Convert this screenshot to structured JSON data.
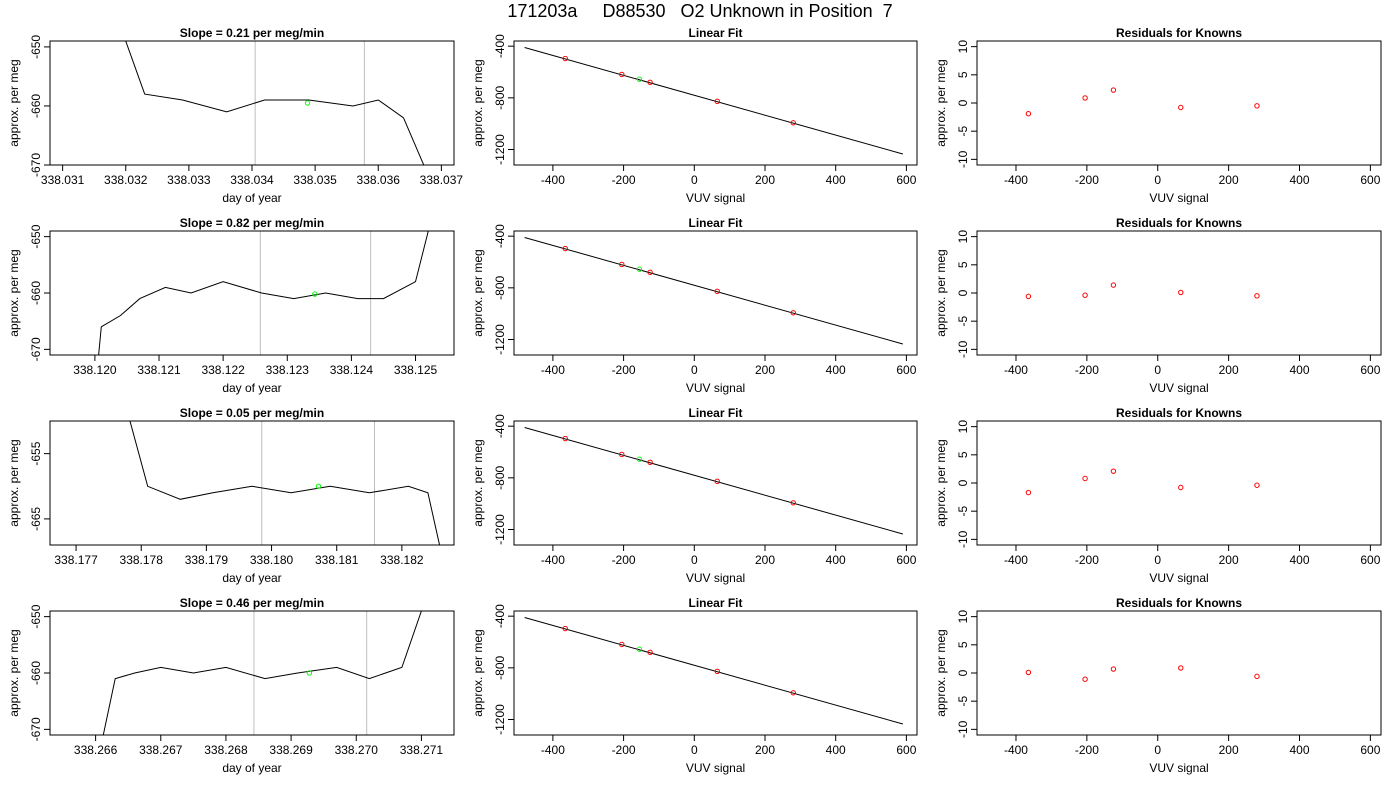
{
  "page_title": "171203a     D88530   O2 Unknown in Position  7",
  "colors": {
    "line": "#000000",
    "gridline": "#bebebe",
    "unknown_point": "#00ff00",
    "known_point": "#ff0000"
  },
  "chart_data": [
    {
      "type": "line",
      "title": "Slope =  0.21  per meg/min",
      "xlabel": "day of year",
      "ylabel": "approx. per meg",
      "xlim": [
        338.0308,
        338.0372
      ],
      "ylim": [
        -670,
        -649
      ],
      "xticks": [
        338.031,
        338.032,
        338.033,
        338.034,
        338.035,
        338.036,
        338.037
      ],
      "xtick_labels": [
        "338.031",
        "338.032",
        "338.033",
        "338.034",
        "338.035",
        "338.036",
        "338.037"
      ],
      "yticks": [
        -670,
        -660,
        -650
      ],
      "ytick_labels": [
        "-670",
        "-660",
        "-650"
      ],
      "x": [
        338.032,
        338.0323,
        338.0329,
        338.0336,
        338.0342,
        338.0349,
        338.0356,
        338.036,
        338.0364,
        338.0368
      ],
      "y": [
        -649,
        -658,
        -659,
        -661,
        -659,
        -659,
        -660,
        -659,
        -662,
        -672
      ],
      "vlines": [
        338.03405,
        338.03578
      ],
      "unknown_point": {
        "x": 338.03488,
        "y": -659.5
      }
    },
    {
      "type": "scatter",
      "title": "Linear Fit",
      "xlabel": "VUV signal",
      "ylabel": "approx. per meg",
      "xlim": [
        -510,
        630
      ],
      "ylim": [
        -1320,
        -360
      ],
      "xticks": [
        -400,
        -200,
        0,
        200,
        400,
        600
      ],
      "xtick_labels": [
        "-400",
        "-200",
        "0",
        "200",
        "400",
        "600"
      ],
      "yticks": [
        -1200,
        -800,
        -400
      ],
      "ytick_labels": [
        "-1200",
        "-800",
        "-400"
      ],
      "fit_line": {
        "x": [
          -480,
          590
        ],
        "y": [
          -410,
          -1235
        ]
      },
      "knowns": {
        "x": [
          -365,
          -205,
          -125,
          65,
          280
        ],
        "y": [
          -496,
          -619,
          -680,
          -827,
          -993
        ]
      },
      "unknown_point": {
        "x": -155,
        "y": -656
      }
    },
    {
      "type": "scatter",
      "title": "Residuals for Knowns",
      "xlabel": "VUV signal",
      "ylabel": "approx. per meg",
      "xlim": [
        -510,
        630
      ],
      "ylim": [
        -11,
        11
      ],
      "xticks": [
        -400,
        -200,
        0,
        200,
        400,
        600
      ],
      "xtick_labels": [
        "-400",
        "-200",
        "0",
        "200",
        "400",
        "600"
      ],
      "yticks": [
        -10,
        -5,
        0,
        5,
        10
      ],
      "ytick_labels": [
        "-10",
        "-5",
        "0",
        "5",
        "10"
      ],
      "knowns": {
        "x": [
          -365,
          -205,
          -125,
          65,
          280
        ],
        "y": [
          -1.9,
          0.9,
          2.3,
          -0.8,
          -0.5
        ]
      }
    },
    {
      "type": "line",
      "title": "Slope =  0.82  per meg/min",
      "xlabel": "day of year",
      "ylabel": "approx. per meg",
      "xlim": [
        338.1193,
        338.1256
      ],
      "ylim": [
        -671,
        -649
      ],
      "xticks": [
        338.12,
        338.121,
        338.122,
        338.123,
        338.124,
        338.125
      ],
      "xtick_labels": [
        "338.120",
        "338.121",
        "338.122",
        "338.123",
        "338.124",
        "338.125"
      ],
      "yticks": [
        -670,
        -660,
        -650
      ],
      "ytick_labels": [
        "-670",
        "-660",
        "-650"
      ],
      "x": [
        338.12005,
        338.1201,
        338.1204,
        338.1207,
        338.1211,
        338.1215,
        338.122,
        338.1226,
        338.1231,
        338.1236,
        338.1241,
        338.1245,
        338.125,
        338.1252
      ],
      "y": [
        -672,
        -666,
        -664,
        -661,
        -659,
        -660,
        -658,
        -660,
        -661,
        -660,
        -661,
        -661,
        -658,
        -649
      ],
      "vlines": [
        338.12258,
        338.1243
      ],
      "unknown_point": {
        "x": 338.12343,
        "y": -660.2
      }
    },
    {
      "type": "scatter",
      "title": "Linear Fit",
      "xlabel": "VUV signal",
      "ylabel": "approx. per meg",
      "xlim": [
        -510,
        630
      ],
      "ylim": [
        -1320,
        -360
      ],
      "xticks": [
        -400,
        -200,
        0,
        200,
        400,
        600
      ],
      "xtick_labels": [
        "-400",
        "-200",
        "0",
        "200",
        "400",
        "600"
      ],
      "yticks": [
        -1200,
        -800,
        -400
      ],
      "ytick_labels": [
        "-1200",
        "-800",
        "-400"
      ],
      "fit_line": {
        "x": [
          -480,
          590
        ],
        "y": [
          -410,
          -1235
        ]
      },
      "knowns": {
        "x": [
          -365,
          -205,
          -125,
          65,
          280
        ],
        "y": [
          -496,
          -619,
          -680,
          -827,
          -993
        ]
      },
      "unknown_point": {
        "x": -155,
        "y": -656
      }
    },
    {
      "type": "scatter",
      "title": "Residuals for Knowns",
      "xlabel": "VUV signal",
      "ylabel": "approx. per meg",
      "xlim": [
        -510,
        630
      ],
      "ylim": [
        -11,
        11
      ],
      "xticks": [
        -400,
        -200,
        0,
        200,
        400,
        600
      ],
      "xtick_labels": [
        "-400",
        "-200",
        "0",
        "200",
        "400",
        "600"
      ],
      "yticks": [
        -10,
        -5,
        0,
        5,
        10
      ],
      "ytick_labels": [
        "-10",
        "-5",
        "0",
        "5",
        "10"
      ],
      "knowns": {
        "x": [
          -365,
          -205,
          -125,
          65,
          280
        ],
        "y": [
          -0.6,
          -0.4,
          1.4,
          0.1,
          -0.5
        ]
      }
    },
    {
      "type": "line",
      "title": "Slope =  0.05  per meg/min",
      "xlabel": "day of year",
      "ylabel": "approx. per meg",
      "xlim": [
        338.1766,
        338.1828
      ],
      "ylim": [
        -669,
        -650
      ],
      "xticks": [
        338.177,
        338.178,
        338.179,
        338.18,
        338.181,
        338.182
      ],
      "xtick_labels": [
        "338.177",
        "338.178",
        "338.179",
        "338.180",
        "338.181",
        "338.182"
      ],
      "yticks": [
        -665,
        -655
      ],
      "ytick_labels": [
        "-665",
        "-655"
      ],
      "x": [
        338.1778,
        338.1781,
        338.1786,
        338.1791,
        338.1797,
        338.1803,
        338.1809,
        338.1815,
        338.1821,
        338.1824,
        338.1826
      ],
      "y": [
        -649,
        -660,
        -662,
        -661,
        -660,
        -661,
        -660,
        -661,
        -660,
        -661,
        -670
      ],
      "vlines": [
        338.17985,
        338.18158
      ],
      "unknown_point": {
        "x": 338.18072,
        "y": -660.0
      }
    },
    {
      "type": "scatter",
      "title": "Linear Fit",
      "xlabel": "VUV signal",
      "ylabel": "approx. per meg",
      "xlim": [
        -510,
        630
      ],
      "ylim": [
        -1320,
        -360
      ],
      "xticks": [
        -400,
        -200,
        0,
        200,
        400,
        600
      ],
      "xtick_labels": [
        "-400",
        "-200",
        "0",
        "200",
        "400",
        "600"
      ],
      "yticks": [
        -1200,
        -800,
        -400
      ],
      "ytick_labels": [
        "-1200",
        "-800",
        "-400"
      ],
      "fit_line": {
        "x": [
          -480,
          590
        ],
        "y": [
          -410,
          -1235
        ]
      },
      "knowns": {
        "x": [
          -365,
          -205,
          -125,
          65,
          280
        ],
        "y": [
          -496,
          -619,
          -680,
          -827,
          -993
        ]
      },
      "unknown_point": {
        "x": -155,
        "y": -656
      }
    },
    {
      "type": "scatter",
      "title": "Residuals for Knowns",
      "xlabel": "VUV signal",
      "ylabel": "approx. per meg",
      "xlim": [
        -510,
        630
      ],
      "ylim": [
        -11,
        11
      ],
      "xticks": [
        -400,
        -200,
        0,
        200,
        400,
        600
      ],
      "xtick_labels": [
        "-400",
        "-200",
        "0",
        "200",
        "400",
        "600"
      ],
      "yticks": [
        -10,
        -5,
        0,
        5,
        10
      ],
      "ytick_labels": [
        "-10",
        "-5",
        "0",
        "5",
        "10"
      ],
      "knowns": {
        "x": [
          -365,
          -205,
          -125,
          65,
          280
        ],
        "y": [
          -1.7,
          0.8,
          2.1,
          -0.8,
          -0.4
        ]
      }
    },
    {
      "type": "line",
      "title": "Slope =  0.46  per meg/min",
      "xlabel": "day of year",
      "ylabel": "approx. per meg",
      "xlim": [
        338.2653,
        338.2715
      ],
      "ylim": [
        -671,
        -649
      ],
      "xticks": [
        338.266,
        338.267,
        338.268,
        338.269,
        338.27,
        338.271
      ],
      "xtick_labels": [
        "338.266",
        "338.267",
        "338.268",
        "338.269",
        "338.270",
        "338.271"
      ],
      "yticks": [
        -670,
        -660,
        -650
      ],
      "ytick_labels": [
        "-670",
        "-660",
        "-650"
      ],
      "x": [
        338.2661,
        338.2663,
        338.2666,
        338.267,
        338.2675,
        338.268,
        338.2686,
        338.2691,
        338.2697,
        338.2702,
        338.2707,
        338.271
      ],
      "y": [
        -672,
        -661,
        -660,
        -659,
        -660,
        -659,
        -661,
        -660,
        -659,
        -661,
        -659,
        -649
      ],
      "vlines": [
        338.26843,
        338.27016
      ],
      "unknown_point": {
        "x": 338.26928,
        "y": -660.0
      }
    },
    {
      "type": "scatter",
      "title": "Linear Fit",
      "xlabel": "VUV signal",
      "ylabel": "approx. per meg",
      "xlim": [
        -510,
        630
      ],
      "ylim": [
        -1320,
        -360
      ],
      "xticks": [
        -400,
        -200,
        0,
        200,
        400,
        600
      ],
      "xtick_labels": [
        "-400",
        "-200",
        "0",
        "200",
        "400",
        "600"
      ],
      "yticks": [
        -1200,
        -800,
        -400
      ],
      "ytick_labels": [
        "-1200",
        "-800",
        "-400"
      ],
      "fit_line": {
        "x": [
          -480,
          590
        ],
        "y": [
          -410,
          -1235
        ]
      },
      "knowns": {
        "x": [
          -365,
          -205,
          -125,
          65,
          280
        ],
        "y": [
          -496,
          -619,
          -680,
          -827,
          -993
        ]
      },
      "unknown_point": {
        "x": -155,
        "y": -656
      }
    },
    {
      "type": "scatter",
      "title": "Residuals for Knowns",
      "xlabel": "VUV signal",
      "ylabel": "approx. per meg",
      "xlim": [
        -510,
        630
      ],
      "ylim": [
        -11,
        11
      ],
      "xticks": [
        -400,
        -200,
        0,
        200,
        400,
        600
      ],
      "xtick_labels": [
        "-400",
        "-200",
        "0",
        "200",
        "400",
        "600"
      ],
      "yticks": [
        -10,
        -5,
        0,
        5,
        10
      ],
      "ytick_labels": [
        "-10",
        "-5",
        "0",
        "5",
        "10"
      ],
      "knowns": {
        "x": [
          -365,
          -205,
          -125,
          65,
          280
        ],
        "y": [
          0.1,
          -1.1,
          0.7,
          0.9,
          -0.6
        ]
      }
    }
  ]
}
